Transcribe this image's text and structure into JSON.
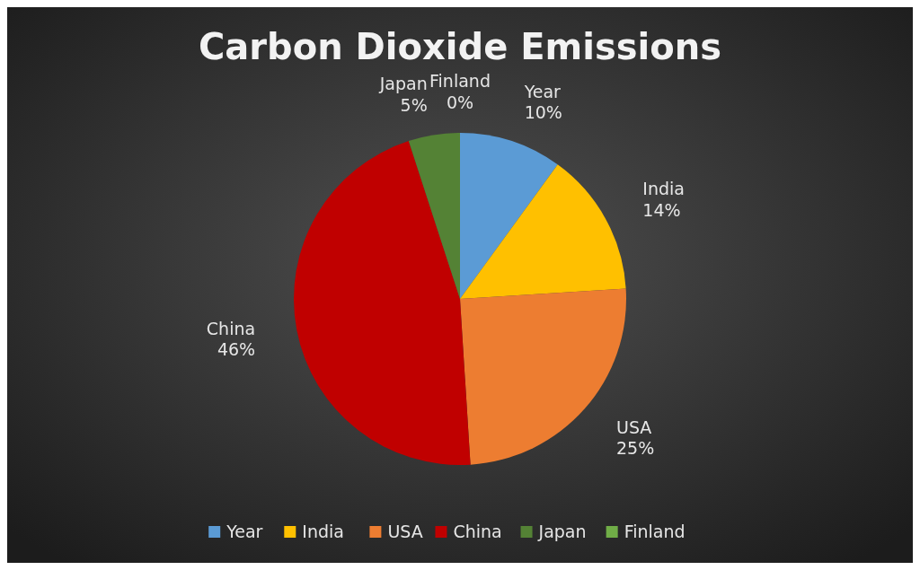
{
  "chart_data": {
    "type": "pie",
    "title": "Carbon Dioxide Emissions",
    "categories": [
      "Year",
      "India",
      "USA",
      "China",
      "Japan",
      "Finland"
    ],
    "values": [
      10,
      14,
      25,
      46,
      5,
      0
    ],
    "colors": [
      "#5b9bd5",
      "#ffc000",
      "#ed7d31",
      "#c00000",
      "#548235",
      "#70ad47"
    ],
    "value_labels": [
      "10%",
      "14%",
      "25%",
      "46%",
      "5%",
      "0%"
    ],
    "legend": "bottom"
  }
}
